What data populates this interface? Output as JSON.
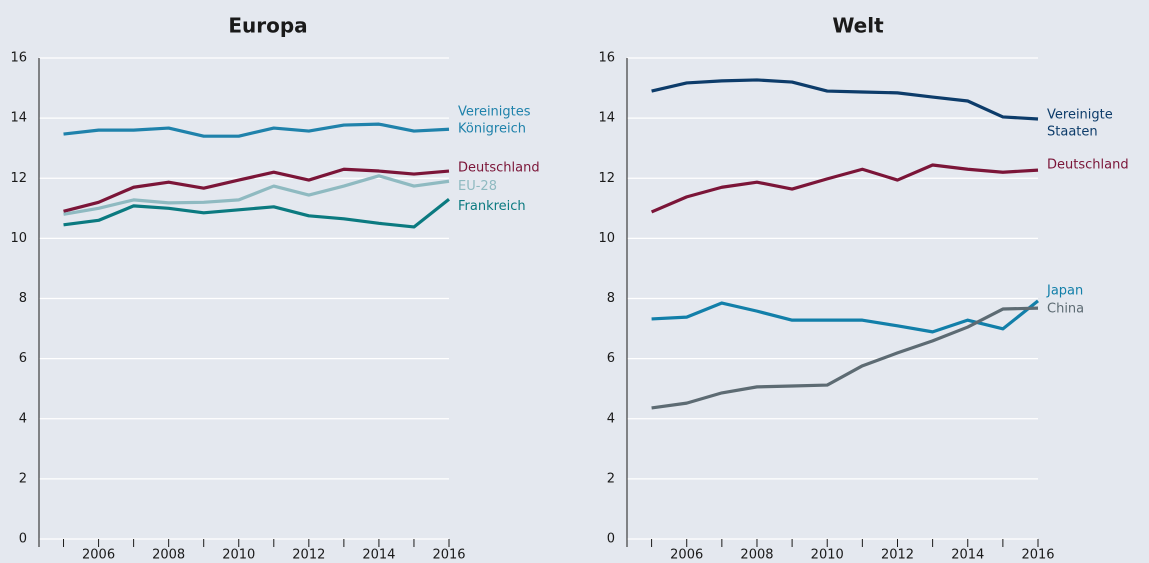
{
  "chart_data": [
    {
      "type": "line",
      "title": "Europa",
      "x": [
        2005,
        2006,
        2007,
        2008,
        2009,
        2010,
        2011,
        2012,
        2013,
        2014,
        2015,
        2016
      ],
      "series": [
        {
          "name": "Vereinigtes Königreich",
          "color": "#1f82ab",
          "values": [
            13.47,
            13.6,
            13.6,
            13.67,
            13.4,
            13.4,
            13.67,
            13.57,
            13.77,
            13.8,
            13.57,
            13.63
          ]
        },
        {
          "name": "Deutschland",
          "color": "#7b1538",
          "values": [
            10.9,
            11.2,
            11.7,
            11.87,
            11.67,
            11.94,
            12.2,
            11.94,
            12.3,
            12.24,
            12.14,
            12.24
          ]
        },
        {
          "name": "EU-28",
          "color": "#8fbac1",
          "values": [
            10.8,
            11.0,
            11.28,
            11.18,
            11.2,
            11.28,
            11.74,
            11.44,
            11.74,
            12.08,
            11.74,
            11.9
          ]
        },
        {
          "name": "Frankreich",
          "color": "#0b7a80",
          "values": [
            10.45,
            10.6,
            11.08,
            11.0,
            10.85,
            10.95,
            11.05,
            10.75,
            10.65,
            10.5,
            10.38,
            11.3
          ]
        }
      ],
      "xlim": [
        2004.3,
        2016
      ],
      "xticks": [
        2006,
        2008,
        2010,
        2012,
        2014,
        2016
      ],
      "xminorticks": [
        2005,
        2007,
        2009,
        2011,
        2013,
        2015
      ],
      "ylim": [
        0,
        16
      ],
      "yticks": [
        0,
        2,
        4,
        6,
        8,
        10,
        12,
        14,
        16
      ],
      "grid": true
    },
    {
      "type": "line",
      "title": "Welt",
      "x": [
        2005,
        2006,
        2007,
        2008,
        2009,
        2010,
        2011,
        2012,
        2013,
        2014,
        2015,
        2016
      ],
      "series": [
        {
          "name": "Vereinigte Staaten",
          "color": "#0d3c6a",
          "values": [
            14.9,
            15.17,
            15.24,
            15.27,
            15.2,
            14.9,
            14.87,
            14.84,
            14.7,
            14.57,
            14.04,
            13.97
          ]
        },
        {
          "name": "Deutschland",
          "color": "#7b1538",
          "values": [
            10.88,
            11.38,
            11.7,
            11.87,
            11.64,
            11.98,
            12.3,
            11.94,
            12.44,
            12.3,
            12.2,
            12.27
          ]
        },
        {
          "name": "Japan",
          "color": "#127fa9",
          "values": [
            7.32,
            7.38,
            7.85,
            7.58,
            7.28,
            7.28,
            7.28,
            7.09,
            6.89,
            7.28,
            6.99,
            7.92
          ]
        },
        {
          "name": "China",
          "color": "#5d6b73",
          "values": [
            4.36,
            4.52,
            4.86,
            5.06,
            5.09,
            5.12,
            5.76,
            6.19,
            6.59,
            7.05,
            7.65,
            7.68
          ]
        }
      ],
      "xlim": [
        2004.3,
        2016
      ],
      "xticks": [
        2006,
        2008,
        2010,
        2012,
        2014,
        2016
      ],
      "xminorticks": [
        2005,
        2007,
        2009,
        2011,
        2013,
        2015
      ],
      "ylim": [
        0,
        16
      ],
      "yticks": [
        0,
        2,
        4,
        6,
        8,
        10,
        12,
        14,
        16
      ],
      "grid": true
    }
  ]
}
